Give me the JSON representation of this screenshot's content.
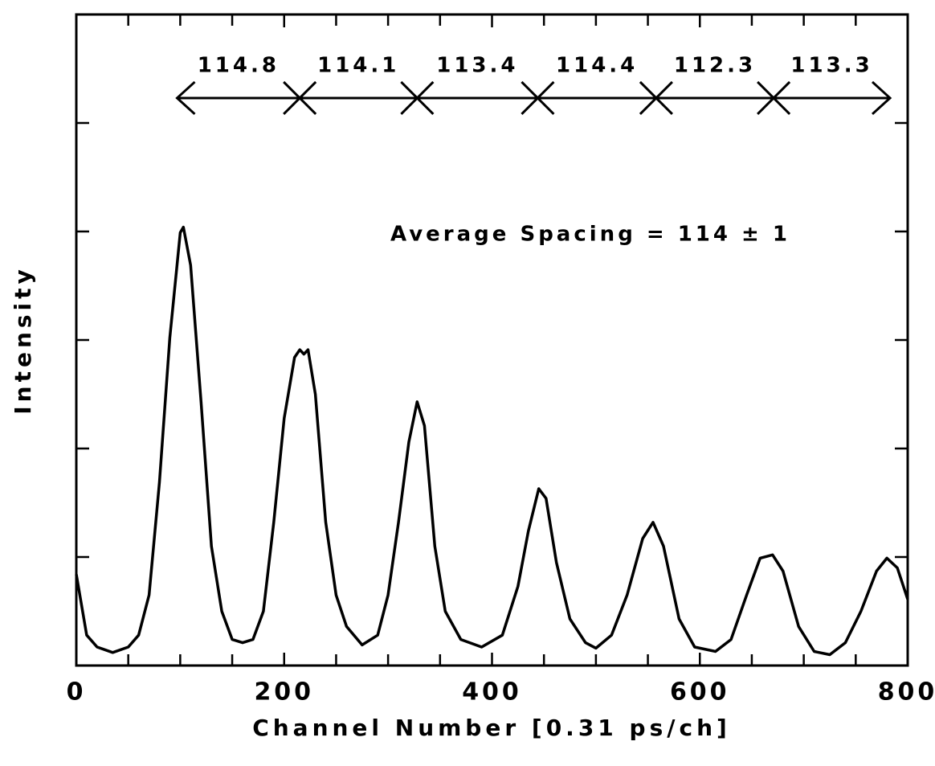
{
  "chart_data": {
    "type": "line",
    "x_label": "Channel Number [0.31 ps/ch]",
    "y_label": "Intensity",
    "xlim": [
      0,
      800
    ],
    "ylim": [
      0,
      6
    ],
    "xticks": [
      0,
      200,
      400,
      600,
      800
    ],
    "xticks_minor": [
      50,
      100,
      150,
      250,
      300,
      350,
      450,
      500,
      550,
      650,
      700,
      750
    ],
    "yticks": [
      1,
      2,
      3,
      4,
      5
    ],
    "color": "#000000",
    "x": [
      0,
      10,
      20,
      35,
      50,
      60,
      70,
      80,
      90,
      100,
      103,
      110,
      120,
      130,
      140,
      150,
      160,
      170,
      180,
      190,
      200,
      210,
      215,
      219,
      223,
      230,
      240,
      250,
      260,
      275,
      290,
      300,
      310,
      320,
      328,
      335,
      345,
      355,
      370,
      390,
      410,
      425,
      435,
      445,
      452,
      462,
      475,
      490,
      500,
      515,
      530,
      545,
      555,
      565,
      580,
      595,
      615,
      630,
      645,
      658,
      670,
      680,
      695,
      710,
      725,
      740,
      755,
      770,
      780,
      790,
      800
    ],
    "values": [
      0.84,
      0.28,
      0.17,
      0.12,
      0.17,
      0.28,
      0.65,
      1.69,
      3.02,
      3.99,
      4.04,
      3.69,
      2.43,
      1.1,
      0.5,
      0.24,
      0.21,
      0.24,
      0.5,
      1.32,
      2.28,
      2.84,
      2.91,
      2.87,
      2.91,
      2.5,
      1.32,
      0.65,
      0.36,
      0.19,
      0.28,
      0.65,
      1.32,
      2.06,
      2.43,
      2.21,
      1.1,
      0.5,
      0.24,
      0.17,
      0.28,
      0.73,
      1.24,
      1.63,
      1.54,
      0.95,
      0.43,
      0.21,
      0.16,
      0.28,
      0.65,
      1.17,
      1.32,
      1.1,
      0.43,
      0.17,
      0.13,
      0.24,
      0.65,
      0.99,
      1.02,
      0.87,
      0.36,
      0.13,
      0.1,
      0.21,
      0.5,
      0.87,
      0.99,
      0.9,
      0.61
    ],
    "arrow": {
      "x": [
        97,
        783
      ],
      "y": 5.23
    },
    "markers": [
      215,
      328,
      444,
      558,
      671
    ],
    "spacing_labels": [
      "114.8",
      "114.1",
      "113.4",
      "114.4",
      "112.3",
      "113.3"
    ],
    "average_label": "Average Spacing = 114 ± 1"
  }
}
